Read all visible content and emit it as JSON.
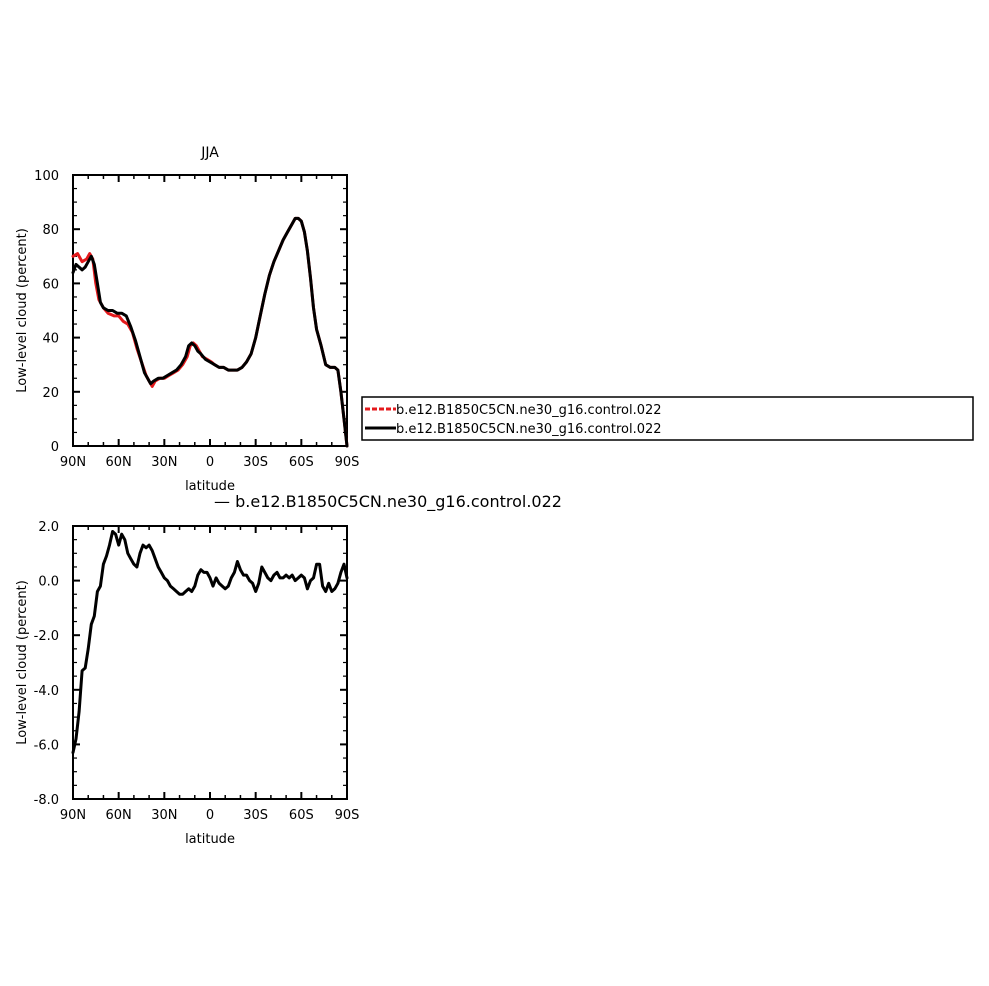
{
  "chart_data": [
    {
      "type": "line",
      "title": "JJA",
      "xlabel": "latitude",
      "ylabel": "Low-level cloud (percent)",
      "xlim": [
        90,
        -90
      ],
      "ylim": [
        0,
        100
      ],
      "x_ticks": [
        90,
        60,
        30,
        0,
        -30,
        -60,
        -90
      ],
      "x_tick_labels": [
        "90N",
        "60N",
        "30N",
        "0",
        "30S",
        "60S",
        "90S"
      ],
      "y_ticks": [
        0,
        20,
        40,
        60,
        80,
        100
      ],
      "y_tick_labels": [
        "0",
        "20",
        "40",
        "60",
        "80",
        "100"
      ],
      "legend_position": "right",
      "series": [
        {
          "name": "b.e12.B1850C5CN.ne30_g16.control.022",
          "color": "#e41a1c",
          "style": "dashed",
          "points": [
            [
              90,
              70
            ],
            [
              87,
              71
            ],
            [
              84,
              68
            ],
            [
              81,
              69
            ],
            [
              79,
              71
            ],
            [
              77,
              69
            ],
            [
              75,
              60
            ],
            [
              73,
              54
            ],
            [
              70,
              51
            ],
            [
              67,
              49
            ],
            [
              63,
              48
            ],
            [
              60,
              48
            ],
            [
              57,
              46
            ],
            [
              54,
              45
            ],
            [
              51,
              42
            ],
            [
              48,
              36
            ],
            [
              45,
              31
            ],
            [
              42,
              26
            ],
            [
              40,
              24
            ],
            [
              38,
              22
            ],
            [
              36,
              24
            ],
            [
              33,
              25
            ],
            [
              30,
              25
            ],
            [
              27,
              26
            ],
            [
              24,
              27
            ],
            [
              21,
              28
            ],
            [
              18,
              30
            ],
            [
              15,
              33
            ],
            [
              13,
              37
            ],
            [
              11,
              38
            ],
            [
              9,
              37
            ],
            [
              7,
              35
            ],
            [
              5,
              33
            ],
            [
              2,
              32
            ],
            [
              -1,
              31
            ],
            [
              -3,
              30
            ],
            [
              -6,
              29
            ],
            [
              -9,
              29
            ],
            [
              -12,
              28
            ],
            [
              -15,
              28
            ],
            [
              -18,
              28
            ],
            [
              -21,
              29
            ],
            [
              -24,
              31
            ],
            [
              -27,
              34
            ],
            [
              -30,
              40
            ],
            [
              -33,
              48
            ],
            [
              -36,
              56
            ],
            [
              -39,
              63
            ],
            [
              -42,
              68
            ],
            [
              -45,
              72
            ],
            [
              -48,
              76
            ],
            [
              -51,
              79
            ],
            [
              -54,
              82
            ],
            [
              -56,
              84
            ],
            [
              -58,
              84
            ],
            [
              -60,
              83
            ],
            [
              -62,
              79
            ],
            [
              -64,
              72
            ],
            [
              -66,
              62
            ],
            [
              -68,
              51
            ],
            [
              -70,
              43
            ],
            [
              -73,
              37
            ],
            [
              -76,
              30
            ],
            [
              -79,
              29
            ],
            [
              -82,
              29
            ],
            [
              -84,
              28
            ],
            [
              -86,
              20
            ],
            [
              -88,
              10
            ],
            [
              -90,
              0
            ]
          ]
        },
        {
          "name": "b.e12.B1850C5CN.ne30_g16.control.022",
          "color": "#000000",
          "style": "solid",
          "points": [
            [
              90,
              64
            ],
            [
              88,
              67
            ],
            [
              86,
              66
            ],
            [
              84,
              65
            ],
            [
              82,
              66
            ],
            [
              80,
              68
            ],
            [
              78,
              70
            ],
            [
              76,
              67
            ],
            [
              74,
              60
            ],
            [
              72,
              53
            ],
            [
              70,
              51
            ],
            [
              67,
              50
            ],
            [
              64,
              50
            ],
            [
              61,
              49
            ],
            [
              58,
              49
            ],
            [
              55,
              48
            ],
            [
              52,
              44
            ],
            [
              49,
              39
            ],
            [
              46,
              33
            ],
            [
              43,
              27
            ],
            [
              41,
              25
            ],
            [
              39,
              23
            ],
            [
              37,
              24
            ],
            [
              34,
              25
            ],
            [
              31,
              25
            ],
            [
              28,
              26
            ],
            [
              25,
              27
            ],
            [
              22,
              28
            ],
            [
              19,
              30
            ],
            [
              16,
              33
            ],
            [
              14,
              37
            ],
            [
              12,
              38
            ],
            [
              10,
              37
            ],
            [
              8,
              35
            ],
            [
              6,
              34
            ],
            [
              3,
              32
            ],
            [
              0,
              31
            ],
            [
              -3,
              30
            ],
            [
              -6,
              29
            ],
            [
              -9,
              29
            ],
            [
              -12,
              28
            ],
            [
              -15,
              28
            ],
            [
              -18,
              28
            ],
            [
              -21,
              29
            ],
            [
              -24,
              31
            ],
            [
              -27,
              34
            ],
            [
              -30,
              40
            ],
            [
              -33,
              48
            ],
            [
              -36,
              56
            ],
            [
              -39,
              63
            ],
            [
              -42,
              68
            ],
            [
              -45,
              72
            ],
            [
              -48,
              76
            ],
            [
              -51,
              79
            ],
            [
              -54,
              82
            ],
            [
              -56,
              84
            ],
            [
              -58,
              84
            ],
            [
              -60,
              83
            ],
            [
              -62,
              79
            ],
            [
              -64,
              72
            ],
            [
              -66,
              62
            ],
            [
              -68,
              51
            ],
            [
              -70,
              43
            ],
            [
              -73,
              37
            ],
            [
              -76,
              30
            ],
            [
              -79,
              29
            ],
            [
              -82,
              29
            ],
            [
              -84,
              28
            ],
            [
              -86,
              20
            ],
            [
              -88,
              10
            ],
            [
              -90,
              0
            ]
          ]
        }
      ]
    },
    {
      "type": "line",
      "title": "— b.e12.B1850C5CN.ne30_g16.control.022",
      "xlabel": "latitude",
      "ylabel": "Low-level cloud (percent)",
      "xlim": [
        90,
        -90
      ],
      "ylim": [
        -8,
        2
      ],
      "x_ticks": [
        90,
        60,
        30,
        0,
        -30,
        -60,
        -90
      ],
      "x_tick_labels": [
        "90N",
        "60N",
        "30N",
        "0",
        "30S",
        "60S",
        "90S"
      ],
      "y_ticks": [
        2,
        0,
        -2,
        -4,
        -6,
        -8
      ],
      "y_tick_labels": [
        "2.0",
        "0.0",
        "-2.0",
        "-4.0",
        "-6.0",
        "-8.0"
      ],
      "series": [
        {
          "color": "#000000",
          "style": "solid",
          "points": [
            [
              90,
              -6.3
            ],
            [
              88,
              -5.8
            ],
            [
              86,
              -4.8
            ],
            [
              84,
              -3.3
            ],
            [
              82,
              -3.2
            ],
            [
              80,
              -2.5
            ],
            [
              78,
              -1.6
            ],
            [
              76,
              -1.3
            ],
            [
              74,
              -0.4
            ],
            [
              72,
              -0.2
            ],
            [
              70,
              0.6
            ],
            [
              68,
              0.9
            ],
            [
              66,
              1.3
            ],
            [
              64,
              1.8
            ],
            [
              62,
              1.7
            ],
            [
              60,
              1.3
            ],
            [
              58,
              1.7
            ],
            [
              56,
              1.5
            ],
            [
              54,
              1.0
            ],
            [
              52,
              0.8
            ],
            [
              50,
              0.6
            ],
            [
              48,
              0.5
            ],
            [
              46,
              1.0
            ],
            [
              44,
              1.3
            ],
            [
              42,
              1.2
            ],
            [
              40,
              1.3
            ],
            [
              38,
              1.1
            ],
            [
              36,
              0.8
            ],
            [
              34,
              0.5
            ],
            [
              32,
              0.3
            ],
            [
              30,
              0.1
            ],
            [
              28,
              0.0
            ],
            [
              26,
              -0.2
            ],
            [
              24,
              -0.3
            ],
            [
              22,
              -0.4
            ],
            [
              20,
              -0.5
            ],
            [
              18,
              -0.5
            ],
            [
              16,
              -0.4
            ],
            [
              14,
              -0.3
            ],
            [
              12,
              -0.4
            ],
            [
              10,
              -0.2
            ],
            [
              8,
              0.2
            ],
            [
              6,
              0.4
            ],
            [
              4,
              0.3
            ],
            [
              2,
              0.3
            ],
            [
              0,
              0.1
            ],
            [
              -2,
              -0.2
            ],
            [
              -4,
              0.1
            ],
            [
              -6,
              -0.1
            ],
            [
              -8,
              -0.2
            ],
            [
              -10,
              -0.3
            ],
            [
              -12,
              -0.2
            ],
            [
              -14,
              0.1
            ],
            [
              -16,
              0.3
            ],
            [
              -18,
              0.7
            ],
            [
              -20,
              0.4
            ],
            [
              -22,
              0.2
            ],
            [
              -24,
              0.2
            ],
            [
              -26,
              0.0
            ],
            [
              -28,
              -0.1
            ],
            [
              -30,
              -0.4
            ],
            [
              -32,
              -0.1
            ],
            [
              -34,
              0.5
            ],
            [
              -36,
              0.3
            ],
            [
              -38,
              0.1
            ],
            [
              -40,
              0.0
            ],
            [
              -42,
              0.2
            ],
            [
              -44,
              0.3
            ],
            [
              -46,
              0.1
            ],
            [
              -48,
              0.1
            ],
            [
              -50,
              0.2
            ],
            [
              -52,
              0.1
            ],
            [
              -54,
              0.2
            ],
            [
              -56,
              0.0
            ],
            [
              -58,
              0.1
            ],
            [
              -60,
              0.2
            ],
            [
              -62,
              0.1
            ],
            [
              -64,
              -0.3
            ],
            [
              -66,
              0.0
            ],
            [
              -68,
              0.1
            ],
            [
              -70,
              0.6
            ],
            [
              -72,
              0.6
            ],
            [
              -74,
              -0.2
            ],
            [
              -76,
              -0.4
            ],
            [
              -78,
              -0.1
            ],
            [
              -80,
              -0.4
            ],
            [
              -82,
              -0.3
            ],
            [
              -84,
              -0.1
            ],
            [
              -86,
              0.3
            ],
            [
              -88,
              0.6
            ],
            [
              -90,
              0.1
            ]
          ]
        }
      ]
    }
  ]
}
